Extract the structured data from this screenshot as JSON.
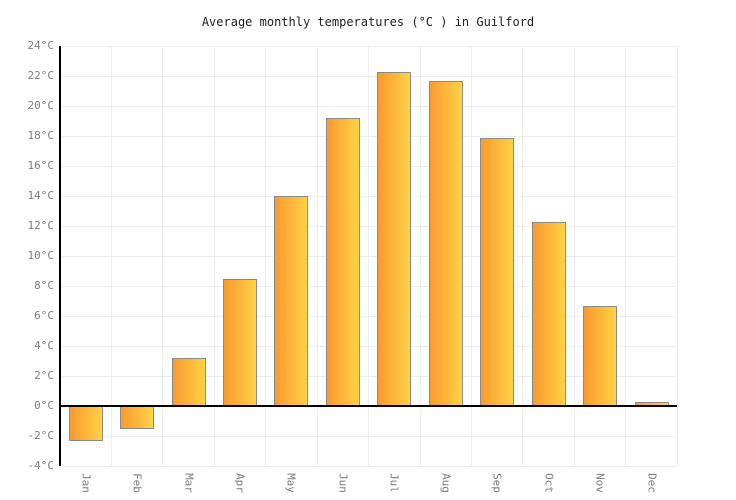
{
  "chart_data": {
    "type": "bar",
    "title": "Average monthly temperatures (°C ) in Guilford",
    "categories": [
      "Jan",
      "Feb",
      "Mar",
      "Apr",
      "May",
      "Jun",
      "Jul",
      "Aug",
      "Sep",
      "Oct",
      "Nov",
      "Dec"
    ],
    "values": [
      -2.3,
      -1.5,
      3.2,
      8.5,
      14.0,
      19.2,
      22.3,
      21.7,
      17.9,
      12.3,
      6.7,
      0.3
    ],
    "xlabel": "",
    "ylabel": "°C",
    "ylim": [
      -4,
      24
    ],
    "ytick_step": 2,
    "ytick_suffix": "°C",
    "grid": true,
    "legend": "none",
    "colors": {
      "bar_gradient_left": "#f99a31",
      "bar_gradient_right": "#ffd245",
      "bar_border": "#8a8a8a",
      "grid_line": "#eeeeee",
      "axis_line": "#000000",
      "tick_label": "#7d7d7d",
      "title_text": "#222222",
      "background": "#ffffff"
    }
  }
}
